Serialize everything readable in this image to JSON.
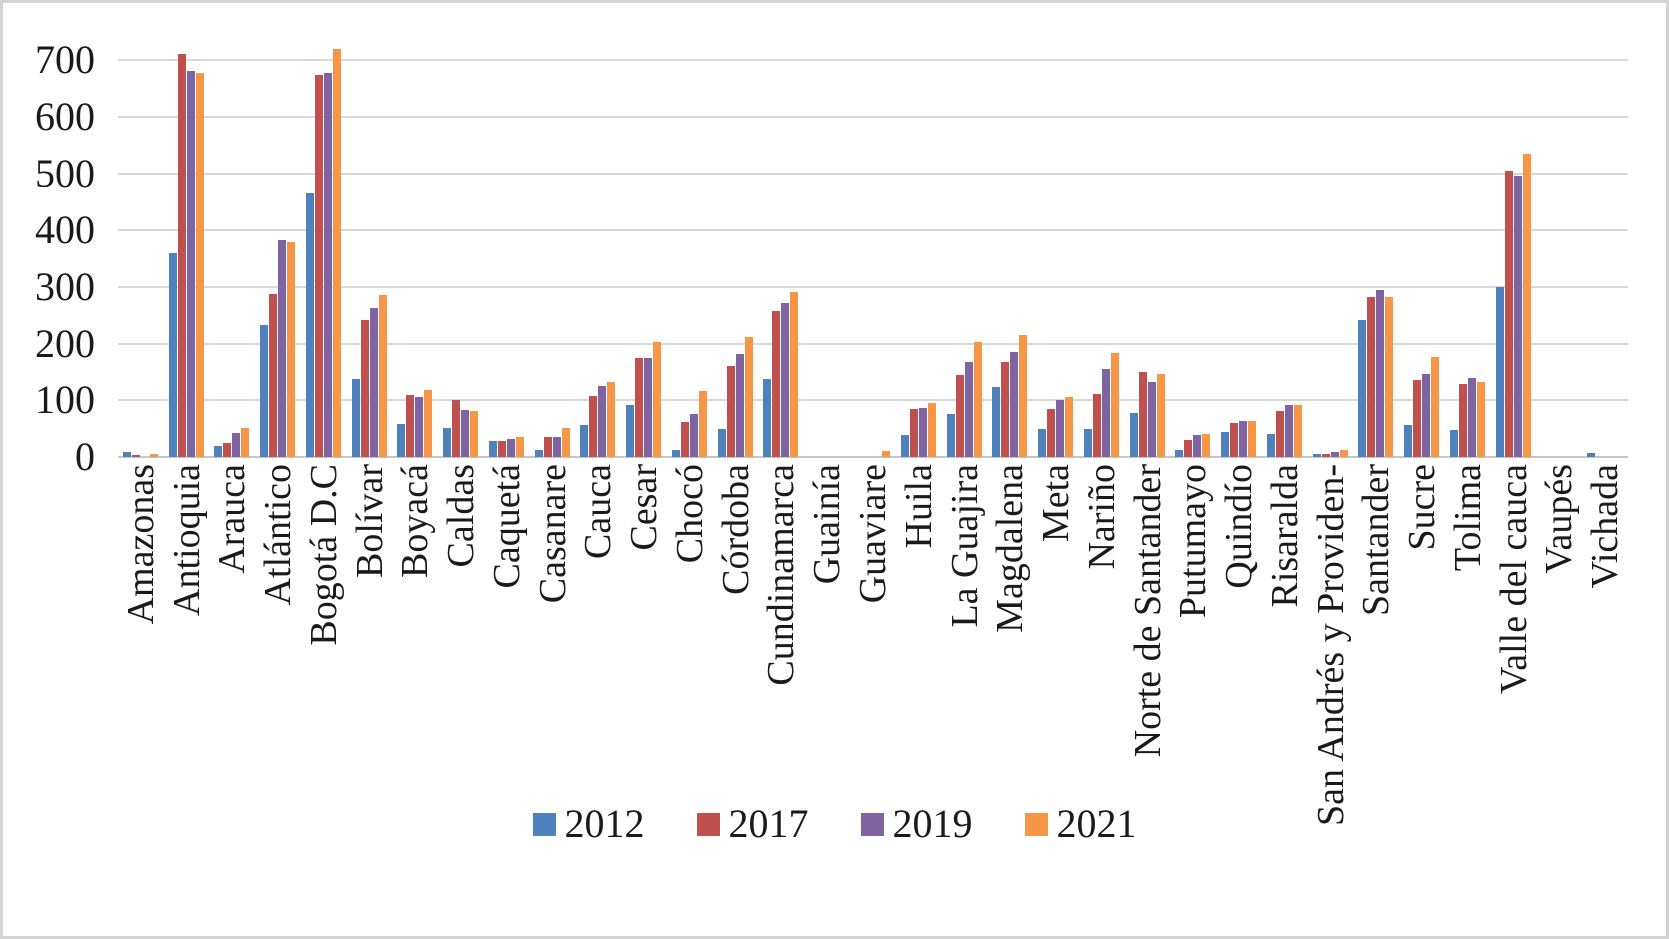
{
  "chart_data": {
    "type": "bar",
    "title": "",
    "xlabel": "",
    "ylabel": "",
    "ylim": [
      0,
      700
    ],
    "yticks": [
      0,
      100,
      200,
      300,
      400,
      500,
      600,
      700
    ],
    "grid": true,
    "legend_position": "bottom-center",
    "gridline_color": "#d9d9d9",
    "axis_line_color": "#c6c6c6",
    "categories": [
      "Amazonas",
      "Antioquia",
      "Arauca",
      "Atlántico",
      "Bogotá D.C",
      "Bolívar",
      "Boyacá",
      "Caldas",
      "Caquetá",
      "Casanare",
      "Cauca",
      "Cesar",
      "Chocó",
      "Córdoba",
      "Cundinamarca",
      "Guainía",
      "Guaviare",
      "Huila",
      "La Guajira",
      "Magdalena",
      "Meta",
      "Nariño",
      "Norte de Santander",
      "Putumayo",
      "Quindío",
      "Risaralda",
      "San Andrés y Providen-",
      "Santander",
      "Sucre",
      "Tolima",
      "Valle del cauca",
      "Vaupés",
      "Vichada"
    ],
    "series": [
      {
        "name": "2012",
        "color": "#4F81BD",
        "values": [
          8,
          360,
          19,
          233,
          465,
          137,
          59,
          52,
          28,
          13,
          57,
          92,
          13,
          49,
          137,
          0,
          0,
          39,
          76,
          123,
          50,
          50,
          78,
          12,
          44,
          41,
          5,
          241,
          57,
          48,
          300,
          0,
          7
        ]
      },
      {
        "name": "2017",
        "color": "#C0504D",
        "values": [
          4,
          710,
          25,
          288,
          673,
          242,
          109,
          101,
          28,
          36,
          107,
          174,
          61,
          161,
          257,
          0,
          0,
          84,
          144,
          167,
          85,
          111,
          150,
          30,
          60,
          81,
          6,
          282,
          136,
          128,
          505,
          0,
          0
        ]
      },
      {
        "name": "2019",
        "color": "#8064A2",
        "values": [
          0,
          680,
          42,
          382,
          677,
          262,
          106,
          83,
          32,
          35,
          125,
          174,
          75,
          182,
          272,
          0,
          0,
          87,
          167,
          185,
          100,
          155,
          132,
          38,
          64,
          92,
          9,
          295,
          147,
          139,
          495,
          0,
          0
        ]
      },
      {
        "name": "2021",
        "color": "#F79646",
        "values": [
          5,
          677,
          51,
          379,
          719,
          286,
          119,
          82,
          36,
          52,
          133,
          202,
          116,
          212,
          291,
          0,
          10,
          95,
          203,
          216,
          105,
          184,
          147,
          41,
          64,
          91,
          13,
          282,
          176,
          132,
          535,
          0,
          0
        ]
      }
    ]
  }
}
